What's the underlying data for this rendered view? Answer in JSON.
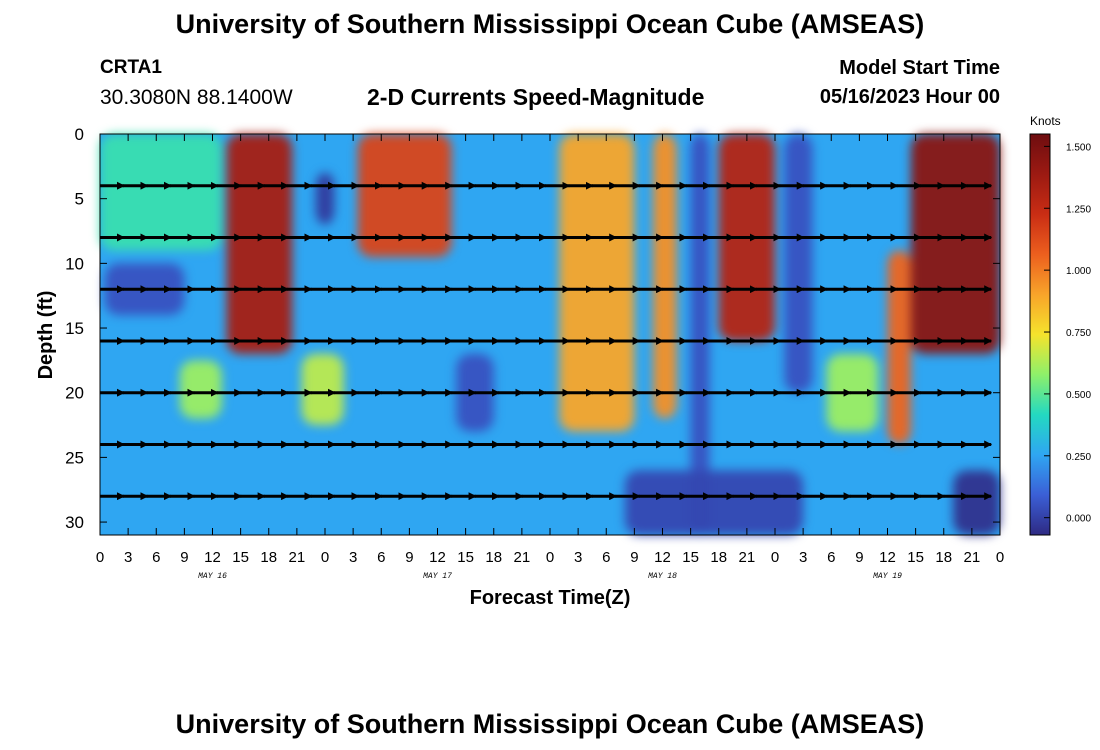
{
  "header": {
    "title": "University of Southern Mississippi Ocean Cube (AMSEAS)",
    "station": "CRTA1",
    "coordinates": "30.3080N  88.1400W",
    "chart_title": "2-D Currents Speed-Magnitude",
    "model_start_label": "Model Start Time",
    "model_start_value": "05/16/2023 Hour 00"
  },
  "footer": {
    "title": "University of Southern Mississippi Ocean Cube (AMSEAS)"
  },
  "chart_data": {
    "type": "heatmap",
    "title": "2-D Currents Speed-Magnitude",
    "xlabel": "Forecast Time(Z)",
    "ylabel": "Depth (ft)",
    "xlim": [
      0,
      96
    ],
    "ylim": [
      0,
      31
    ],
    "x_tick_labels": [
      "0",
      "3",
      "6",
      "9",
      "12",
      "15",
      "18",
      "21",
      "0",
      "3",
      "6",
      "9",
      "12",
      "15",
      "18",
      "21",
      "0",
      "3",
      "6",
      "9",
      "12",
      "15",
      "18",
      "21",
      "0",
      "3",
      "6",
      "9",
      "12",
      "15",
      "18",
      "21",
      "0"
    ],
    "date_labels": [
      "MAY 16",
      "MAY 17",
      "MAY 18",
      "MAY 19"
    ],
    "y_ticks": [
      0,
      5,
      10,
      15,
      20,
      25,
      30
    ],
    "y_tick_labels": [
      "0",
      "5",
      "10",
      "15",
      "20",
      "25",
      "30"
    ],
    "colorbar": {
      "label": "Knots",
      "min": -0.07,
      "max": 1.55,
      "ticks": [
        1.5,
        1.25,
        1.0,
        0.75,
        0.5,
        0.25,
        0.0
      ],
      "tick_labels": [
        "1.500",
        "1.250",
        "1.000",
        "0.750",
        "0.500",
        "0.250",
        "0.000"
      ]
    },
    "arrow_depths": [
      4,
      8,
      12,
      16,
      20,
      24,
      28
    ],
    "arrow_hour_step": 2.5,
    "speed_features": [
      {
        "hours": [
          13.5,
          20.5
        ],
        "depths": [
          0,
          17
        ],
        "speed": 1.35
      },
      {
        "hours": [
          0,
          13
        ],
        "depths": [
          0,
          9
        ],
        "speed": 0.45
      },
      {
        "hours": [
          8.5,
          13
        ],
        "depths": [
          17.5,
          22
        ],
        "speed": 0.6
      },
      {
        "hours": [
          0.5,
          9
        ],
        "depths": [
          10,
          14
        ],
        "speed": 0.05
      },
      {
        "hours": [
          21.5,
          26
        ],
        "depths": [
          17,
          22.5
        ],
        "speed": 0.65
      },
      {
        "hours": [
          23,
          25
        ],
        "depths": [
          3,
          7
        ],
        "speed": -0.02
      },
      {
        "hours": [
          27.5,
          37.5
        ],
        "depths": [
          0,
          9.5
        ],
        "speed": 1.15
      },
      {
        "hours": [
          38,
          42
        ],
        "depths": [
          17,
          23
        ],
        "speed": 0.05
      },
      {
        "hours": [
          49,
          57
        ],
        "depths": [
          0,
          23
        ],
        "speed": 0.9
      },
      {
        "hours": [
          59,
          61.5
        ],
        "depths": [
          0,
          22
        ],
        "speed": 0.95
      },
      {
        "hours": [
          63,
          65
        ],
        "depths": [
          0,
          31
        ],
        "speed": 0.05
      },
      {
        "hours": [
          66,
          72
        ],
        "depths": [
          0,
          16
        ],
        "speed": 1.3
      },
      {
        "hours": [
          56,
          75
        ],
        "depths": [
          26,
          31
        ],
        "speed": 0.02
      },
      {
        "hours": [
          73,
          76
        ],
        "depths": [
          0,
          20
        ],
        "speed": 0.05
      },
      {
        "hours": [
          77.5,
          83
        ],
        "depths": [
          17,
          23
        ],
        "speed": 0.6
      },
      {
        "hours": [
          84,
          86.5
        ],
        "depths": [
          9,
          24
        ],
        "speed": 1.05
      },
      {
        "hours": [
          86.5,
          96
        ],
        "depths": [
          0,
          17
        ],
        "speed": 1.45
      },
      {
        "hours": [
          91,
          96
        ],
        "depths": [
          26,
          31
        ],
        "speed": -0.05
      }
    ]
  }
}
